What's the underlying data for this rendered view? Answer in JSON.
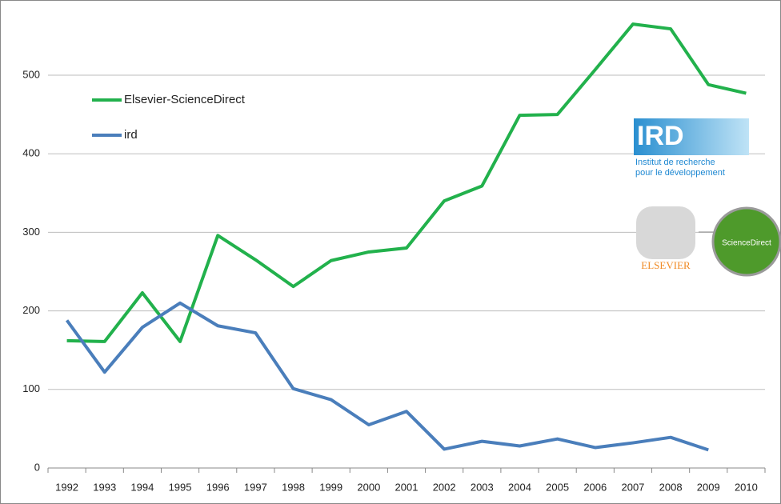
{
  "chart_data": {
    "type": "line",
    "categories": [
      "1992",
      "1993",
      "1994",
      "1995",
      "1996",
      "1997",
      "1998",
      "1999",
      "2000",
      "2001",
      "2002",
      "2003",
      "2004",
      "2005",
      "2006",
      "2007",
      "2008",
      "2009",
      "2010"
    ],
    "series": [
      {
        "name": "Elsevier-ScienceDirect",
        "color": "#22b14c",
        "values": [
          162,
          161,
          223,
          161,
          296,
          265,
          231,
          264,
          275,
          280,
          340,
          359,
          449,
          450,
          507,
          565,
          559,
          488,
          477
        ]
      },
      {
        "name": "ird",
        "color": "#4a7ebb",
        "values": [
          188,
          122,
          179,
          210,
          181,
          172,
          101,
          87,
          55,
          72,
          24,
          34,
          28,
          37,
          26,
          32,
          39,
          23,
          null
        ]
      }
    ],
    "ylim": [
      0,
      590
    ],
    "yticks": [
      0,
      100,
      200,
      300,
      400,
      500
    ],
    "grid": true,
    "legend": "upper left",
    "annotations": [
      "IRD",
      "Institut de recherche",
      "pour le développement",
      "ELSEVIER",
      "ScienceDirect"
    ]
  }
}
